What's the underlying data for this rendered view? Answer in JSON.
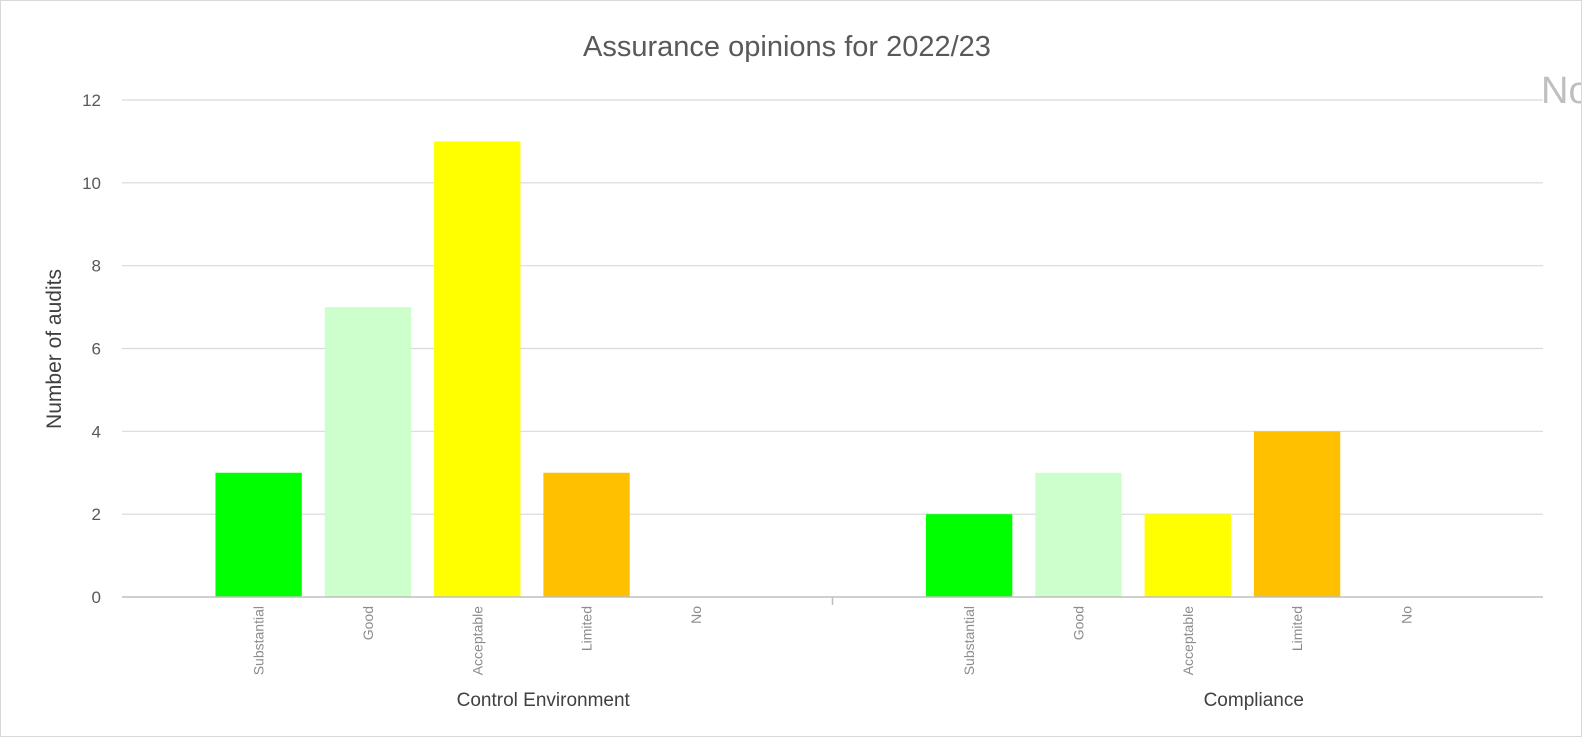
{
  "chart_data": {
    "type": "bar",
    "title": "Assurance opinions for 2022/23",
    "ylabel": "Number of audits",
    "xlabel": "",
    "ylim": [
      0,
      12
    ],
    "yticks": [
      0,
      2,
      4,
      6,
      8,
      10,
      12
    ],
    "grid": true,
    "legend": "none",
    "groups": [
      {
        "name": "Control Environment",
        "categories": [
          "Substantial",
          "Good",
          "Acceptable",
          "Limited",
          "No"
        ],
        "values": [
          3,
          7,
          11,
          3,
          0
        ]
      },
      {
        "name": "Compliance",
        "categories": [
          "Substantial",
          "Good",
          "Acceptable",
          "Limited",
          "No"
        ],
        "values": [
          2,
          3,
          2,
          4,
          0
        ]
      }
    ],
    "category_colors": {
      "Substantial": "#00ff00",
      "Good": "#ccffcc",
      "Acceptable": "#ffff00",
      "Limited": "#ffc000",
      "No": "#ff0000"
    }
  },
  "overflow_text": "No"
}
